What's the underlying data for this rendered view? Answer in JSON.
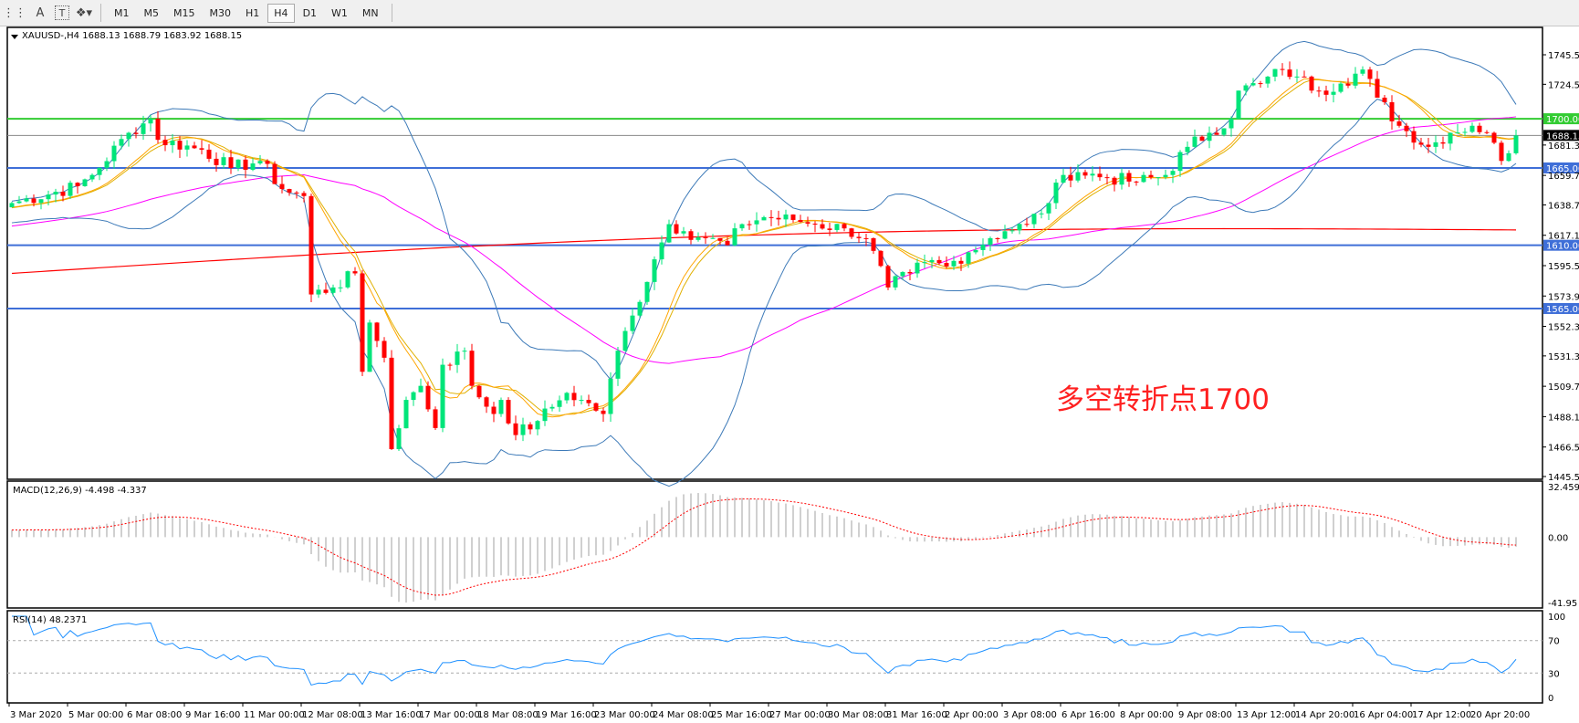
{
  "toolbar": {
    "icons": [
      "grid-lines-icon",
      "text-a-icon",
      "text-label-icon",
      "arrows-dropdown-icon"
    ],
    "timeframes": [
      "M1",
      "M5",
      "M15",
      "M30",
      "H1",
      "H4",
      "D1",
      "W1",
      "MN"
    ],
    "active_timeframe": "H4"
  },
  "chart": {
    "header": "XAUUSD-,H4  1688.13 1688.79 1683.92 1688.15",
    "annotation": "多空转折点1700",
    "price_ticks": [
      "1745.50",
      "1724.50",
      "1681.30",
      "1659.70",
      "1638.70",
      "1617.10",
      "1595.50",
      "1573.90",
      "1552.30",
      "1531.30",
      "1509.70",
      "1488.10",
      "1466.50",
      "1445.50"
    ],
    "price_ticks_values": [
      1745.5,
      1724.5,
      1681.3,
      1659.7,
      1638.7,
      1617.1,
      1595.5,
      1573.9,
      1552.3,
      1531.3,
      1509.7,
      1488.1,
      1466.5,
      1445.5
    ],
    "levels": [
      {
        "label": "1700.00",
        "price": 1700,
        "color": "#33cc33"
      },
      {
        "label": "1665.00",
        "price": 1665,
        "color": "#3f6fd8"
      },
      {
        "label": "1610.00",
        "price": 1610,
        "color": "#3f6fd8"
      },
      {
        "label": "1565.00",
        "price": 1565,
        "color": "#3f6fd8"
      }
    ],
    "current_price": "1688.15",
    "colors": {
      "bull": "#00e57a",
      "bear": "#ff0000",
      "bands": "#3d7ab8",
      "ma_fast": "#ffa500",
      "ma_mid": "#ff00ff",
      "ma_slow": "#ff0000"
    },
    "price_path": [
      [
        0,
        1640
      ],
      [
        9,
        1652
      ],
      [
        11,
        1660
      ],
      [
        16,
        1690
      ],
      [
        19,
        1700
      ],
      [
        20,
        1685
      ],
      [
        26,
        1678
      ],
      [
        30,
        1665
      ],
      [
        34,
        1670
      ],
      [
        37,
        1650
      ],
      [
        40,
        1645
      ],
      [
        41,
        1575
      ],
      [
        44,
        1580
      ],
      [
        47,
        1590
      ],
      [
        48,
        1520
      ],
      [
        49,
        1555
      ],
      [
        51,
        1530
      ],
      [
        52,
        1465
      ],
      [
        54,
        1500
      ],
      [
        56,
        1510
      ],
      [
        58,
        1480
      ],
      [
        59,
        1525
      ],
      [
        62,
        1535
      ],
      [
        63,
        1510
      ],
      [
        66,
        1490
      ],
      [
        67,
        1500
      ],
      [
        69,
        1475
      ],
      [
        72,
        1485
      ],
      [
        74,
        1495
      ],
      [
        76,
        1505
      ],
      [
        78,
        1500
      ],
      [
        81,
        1490
      ],
      [
        83,
        1535
      ],
      [
        85,
        1560
      ],
      [
        88,
        1600
      ],
      [
        90,
        1625
      ],
      [
        92,
        1620
      ],
      [
        95,
        1615
      ],
      [
        98,
        1610
      ],
      [
        100,
        1625
      ],
      [
        103,
        1630
      ],
      [
        107,
        1628
      ],
      [
        110,
        1625
      ],
      [
        114,
        1622
      ],
      [
        117,
        1615
      ],
      [
        120,
        1580
      ],
      [
        123,
        1590
      ],
      [
        125,
        1598
      ],
      [
        128,
        1595
      ],
      [
        131,
        1605
      ],
      [
        134,
        1615
      ],
      [
        136,
        1620
      ],
      [
        139,
        1625
      ],
      [
        142,
        1640
      ],
      [
        144,
        1660
      ],
      [
        146,
        1662
      ],
      [
        150,
        1658
      ],
      [
        154,
        1655
      ],
      [
        158,
        1660
      ],
      [
        161,
        1680
      ],
      [
        164,
        1690
      ],
      [
        167,
        1700
      ],
      [
        168,
        1720
      ],
      [
        171,
        1725
      ],
      [
        174,
        1735
      ],
      [
        176,
        1730
      ],
      [
        179,
        1720
      ],
      [
        182,
        1725
      ],
      [
        185,
        1735
      ],
      [
        187,
        1715
      ],
      [
        190,
        1695
      ],
      [
        194,
        1680
      ],
      [
        197,
        1690
      ],
      [
        200,
        1695
      ],
      [
        202,
        1690
      ],
      [
        204,
        1670
      ],
      [
        206,
        1688.15
      ]
    ]
  },
  "macd": {
    "header": "MACD(12,26,9) -4.498 -4.337",
    "ticks": [
      "32.459",
      "0.00",
      "-41.95"
    ],
    "range": [
      -41.95,
      32.459
    ]
  },
  "rsi": {
    "header": "RSI(14) 48.2371",
    "ticks": [
      "100",
      "70",
      "30",
      "0"
    ],
    "levels": [
      70,
      30
    ]
  },
  "time_axis": [
    "3 Mar 2020",
    "5 Mar 00:00",
    "6 Mar 08:00",
    "9 Mar 16:00",
    "11 Mar 00:00",
    "12 Mar 08:00",
    "13 Mar 16:00",
    "17 Mar 00:00",
    "18 Mar 08:00",
    "19 Mar 16:00",
    "23 Mar 00:00",
    "24 Mar 08:00",
    "25 Mar 16:00",
    "27 Mar 00:00",
    "30 Mar 08:00",
    "31 Mar 16:00",
    "2 Apr 00:00",
    "3 Apr 08:00",
    "6 Apr 16:00",
    "8 Apr 00:00",
    "9 Apr 08:00",
    "13 Apr 12:00",
    "14 Apr 20:00",
    "16 Apr 04:00",
    "17 Apr 12:00",
    "20 Apr 20:00"
  ]
}
